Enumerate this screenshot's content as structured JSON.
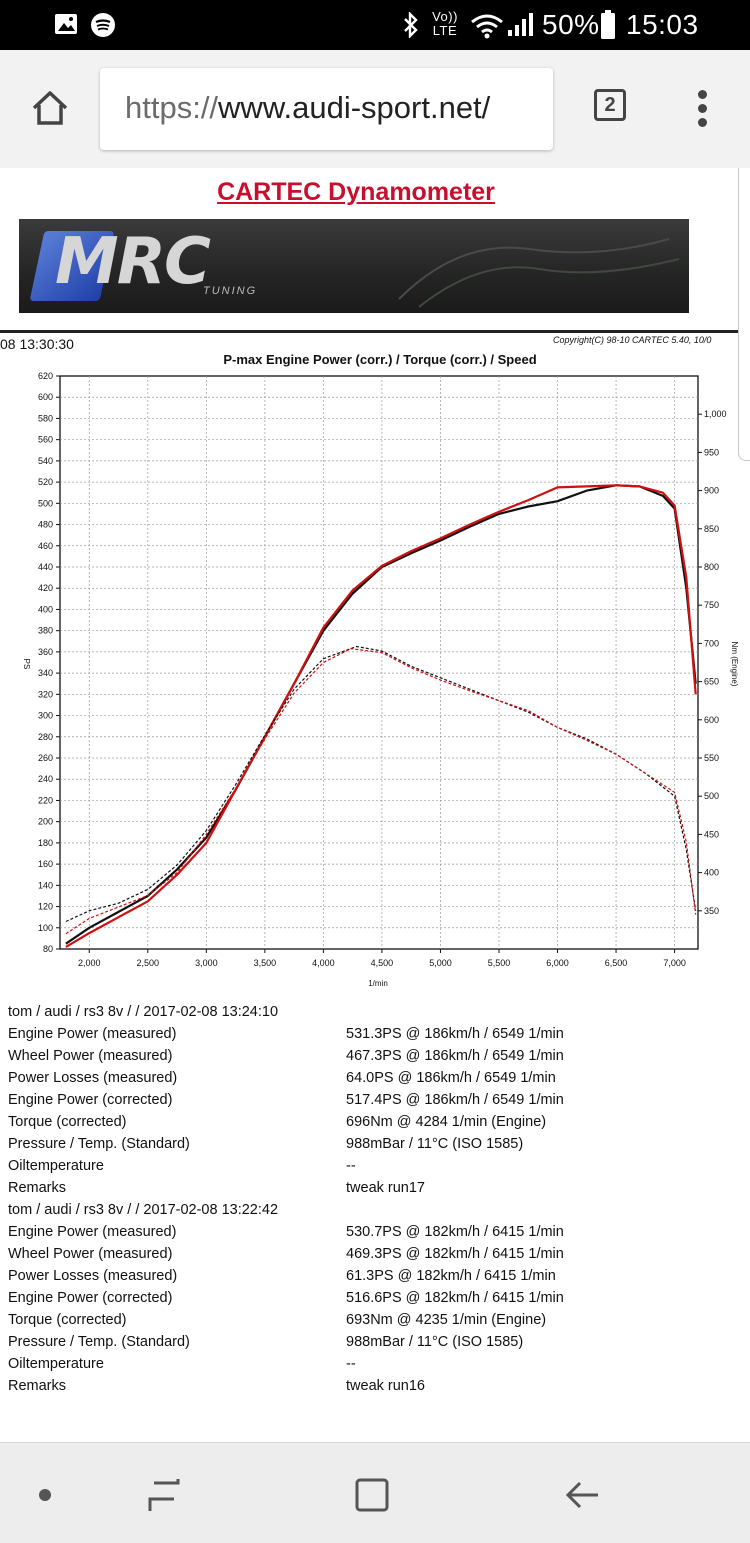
{
  "status_bar": {
    "battery": "50%",
    "time": "15:03",
    "network_label": "Vo)) LTE",
    "icons": [
      "gallery-icon",
      "spotify-icon",
      "bluetooth-icon",
      "wifi-icon",
      "signal-icon",
      "battery-icon"
    ]
  },
  "browser": {
    "url_scheme": "https://",
    "url_host": "www.audi-sport.net/",
    "tab_count": "2"
  },
  "page": {
    "title": "CARTEC Dynamometer",
    "banner_logo": "MRC",
    "banner_sub": "TUNING"
  },
  "chart_meta": {
    "timestamp": "08 13:30:30",
    "copyright": "Copyright(C) 98-10 CARTEC 5.40, 10/0"
  },
  "chart_data": {
    "type": "line",
    "title": "P-max Engine Power (corr.) / Torque (corr.) / Speed",
    "xlabel": "1/min",
    "ylabel_left": "PS",
    "ylabel_right": "Nm (Engine)",
    "xlim": [
      1750,
      7200
    ],
    "ylim_left": [
      80,
      620
    ],
    "ylim_right": [
      300,
      1050
    ],
    "x_ticks": [
      2000,
      2500,
      3000,
      3500,
      4000,
      4500,
      5000,
      5500,
      6000,
      6500,
      7000
    ],
    "x_tick_labels": [
      "2,000",
      "2,500",
      "3,000",
      "3,500",
      "4,000",
      "4,500",
      "5,000",
      "5,500",
      "6,000",
      "6,500",
      "7,000"
    ],
    "y_left_ticks": [
      80,
      100,
      120,
      140,
      160,
      180,
      200,
      220,
      240,
      260,
      280,
      300,
      320,
      340,
      360,
      380,
      400,
      420,
      440,
      460,
      480,
      500,
      520,
      540,
      560,
      580,
      600,
      620
    ],
    "y_right_ticks": [
      350,
      400,
      450,
      500,
      550,
      600,
      650,
      700,
      750,
      800,
      850,
      900,
      950,
      1000
    ],
    "y_right_tick_labels": [
      "350",
      "400",
      "450",
      "500",
      "550",
      "600",
      "650",
      "700",
      "750",
      "800",
      "850",
      "900",
      "950",
      "1,000"
    ],
    "grid": true,
    "series": [
      {
        "name": "Engine Power (corrected) run17",
        "color": "#111111",
        "style": "solid",
        "axis": "left",
        "x": [
          1800,
          2000,
          2250,
          2500,
          2750,
          3000,
          3250,
          3500,
          3750,
          4000,
          4250,
          4500,
          4750,
          5000,
          5250,
          5500,
          5750,
          6000,
          6250,
          6500,
          6700,
          6900,
          7000,
          7100,
          7180
        ],
        "y": [
          85,
          100,
          115,
          130,
          155,
          185,
          230,
          280,
          330,
          380,
          415,
          440,
          453,
          465,
          478,
          490,
          497,
          502,
          512,
          517,
          516,
          507,
          495,
          420,
          330
        ]
      },
      {
        "name": "Engine Power (corrected) run16",
        "color": "#d01010",
        "style": "solid",
        "axis": "left",
        "x": [
          1800,
          2000,
          2250,
          2500,
          2750,
          3000,
          3250,
          3500,
          3750,
          4000,
          4250,
          4500,
          4750,
          5000,
          5250,
          5500,
          5750,
          6000,
          6250,
          6500,
          6700,
          6900,
          7000,
          7100,
          7180
        ],
        "y": [
          82,
          95,
          110,
          125,
          150,
          180,
          230,
          280,
          330,
          383,
          418,
          441,
          455,
          467,
          480,
          492,
          503,
          515,
          516,
          517,
          516,
          510,
          498,
          430,
          320
        ]
      },
      {
        "name": "Torque (corrected) run17",
        "color": "#111111",
        "style": "dashed",
        "axis": "right",
        "x": [
          1800,
          2000,
          2250,
          2500,
          2750,
          3000,
          3250,
          3500,
          3750,
          4000,
          4284,
          4500,
          4750,
          5000,
          5250,
          5500,
          5750,
          6000,
          6250,
          6500,
          6750,
          7000,
          7100,
          7180
        ],
        "y": [
          336,
          350,
          360,
          378,
          410,
          455,
          515,
          580,
          640,
          680,
          696,
          690,
          670,
          655,
          640,
          625,
          610,
          590,
          575,
          555,
          530,
          500,
          430,
          350
        ]
      },
      {
        "name": "Torque (corrected) run16",
        "color": "#d01010",
        "style": "dashed",
        "axis": "right",
        "x": [
          1800,
          2000,
          2250,
          2500,
          2750,
          3000,
          3250,
          3500,
          3750,
          4000,
          4235,
          4500,
          4750,
          5000,
          5250,
          5500,
          5750,
          6000,
          6250,
          6500,
          6750,
          7000,
          7100,
          7180
        ],
        "y": [
          320,
          340,
          355,
          370,
          400,
          450,
          510,
          575,
          635,
          675,
          693,
          688,
          668,
          652,
          638,
          625,
          612,
          590,
          573,
          555,
          530,
          505,
          440,
          345
        ]
      }
    ]
  },
  "results": [
    {
      "header": "tom / audi / rs3 8v /  / 2017-02-08 13:24:10",
      "rows": [
        {
          "label": "Engine Power (measured)",
          "value": "531.3PS @ 186km/h / 6549 1/min"
        },
        {
          "label": "Wheel Power (measured)",
          "value": "467.3PS @ 186km/h / 6549 1/min"
        },
        {
          "label": "Power Losses (measured)",
          "value": "64.0PS @ 186km/h / 6549 1/min"
        },
        {
          "label": "Engine Power (corrected)",
          "value": "517.4PS @ 186km/h / 6549 1/min"
        },
        {
          "label": "Torque (corrected)",
          "value": "696Nm @ 4284 1/min (Engine)"
        },
        {
          "label": "Pressure / Temp. (Standard)",
          "value": "988mBar / 11°C   (ISO 1585)"
        },
        {
          "label": "Oiltemperature",
          "value": "--"
        },
        {
          "label": "Remarks",
          "value": "tweak run17"
        }
      ]
    },
    {
      "header": "tom / audi / rs3 8v /  / 2017-02-08 13:22:42",
      "rows": [
        {
          "label": "Engine Power (measured)",
          "value": "530.7PS @ 182km/h / 6415 1/min"
        },
        {
          "label": "Wheel Power (measured)",
          "value": "469.3PS @ 182km/h / 6415 1/min"
        },
        {
          "label": "Power Losses (measured)",
          "value": "61.3PS @ 182km/h / 6415 1/min"
        },
        {
          "label": "Engine Power (corrected)",
          "value": "516.6PS @ 182km/h / 6415 1/min"
        },
        {
          "label": "Torque (corrected)",
          "value": "693Nm @ 4235 1/min (Engine)"
        },
        {
          "label": "Pressure / Temp. (Standard)",
          "value": "988mBar / 11°C   (ISO 1585)"
        },
        {
          "label": "Oiltemperature",
          "value": "--"
        },
        {
          "label": "Remarks",
          "value": "tweak run16"
        }
      ]
    }
  ],
  "nav_bar": {
    "buttons": [
      "dot-icon",
      "recents-icon",
      "home-icon",
      "back-icon"
    ]
  }
}
